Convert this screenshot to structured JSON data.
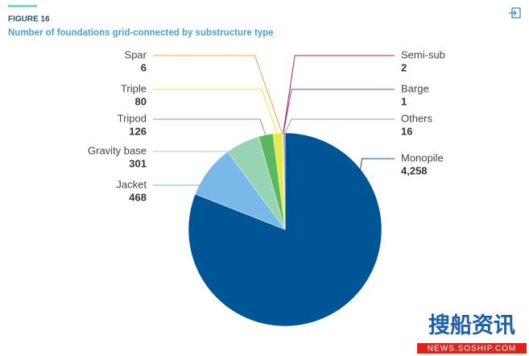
{
  "chart_data": {
    "type": "pie",
    "figure_label": "FIGURE 16",
    "title": "Number of foundations grid-connected by substructure type",
    "categories": [
      "Monopile",
      "Jacket",
      "Gravity base",
      "Tripod",
      "Triple",
      "Spar",
      "Semi-sub",
      "Barge",
      "Others"
    ],
    "values": [
      4258,
      468,
      301,
      126,
      80,
      6,
      2,
      1,
      16
    ],
    "value_labels": [
      "4,258",
      "468",
      "301",
      "126",
      "80",
      "6",
      "2",
      "1",
      "16"
    ],
    "colors": [
      "#005596",
      "#7ab8e8",
      "#96d4b4",
      "#5cb85c",
      "#e8ea4a",
      "#f0a830",
      "#c8174a",
      "#7b3f9e",
      "#9a9a9a"
    ],
    "watermark": [
      "搜船资讯",
      "NEWS.SOSHIP.COM"
    ]
  }
}
